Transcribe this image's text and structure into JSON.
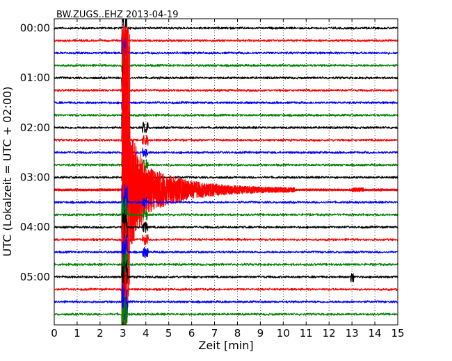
{
  "chart_data": {
    "type": "line",
    "title": "BW.ZUGS..EHZ 2013-04-19",
    "xlabel": "Zeit  [min]",
    "ylabel": "UTC (Lokalzeit = UTC + 02:00)",
    "xlim": [
      0,
      15
    ],
    "x_ticks": [
      0,
      1,
      2,
      3,
      4,
      5,
      6,
      7,
      8,
      9,
      10,
      11,
      12,
      13,
      14,
      15
    ],
    "y_ticks": [
      "00:00",
      "01:00",
      "02:00",
      "03:00",
      "04:00",
      "05:00"
    ],
    "row_interval_minutes": 15,
    "row_count": 24,
    "grid": {
      "vertical": "dotted",
      "horizontal": false
    },
    "series_colors": [
      "#000000",
      "#ff0000",
      "#0000ff",
      "#008000"
    ],
    "event": {
      "description": "earthquake",
      "row_label": "03:15",
      "onset_minute": 2.95,
      "coda_end_minute": 10.5
    },
    "local_spike": {
      "row_label": "05:00",
      "minute": 13.0
    }
  }
}
